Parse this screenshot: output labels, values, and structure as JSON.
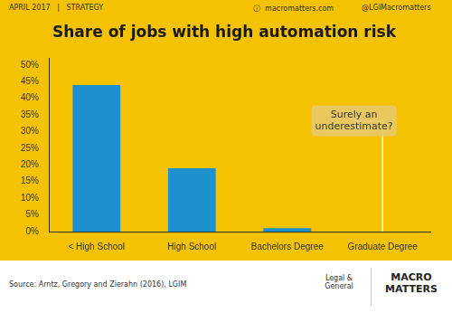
{
  "chart_data": {
    "type": "bar",
    "title": "Share of jobs with high automation risk",
    "categories": [
      "< High School",
      "High School",
      "Bachelors Degree",
      "Graduate Degree"
    ],
    "values": [
      44,
      19,
      1,
      0
    ],
    "color": "#1e90cd",
    "ylim": [
      0,
      52
    ],
    "yticks": [
      {
        "value": 0,
        "label": "0%"
      },
      {
        "value": 5,
        "label": "5%"
      },
      {
        "value": 10,
        "label": "10%"
      },
      {
        "value": 15,
        "label": "15%"
      },
      {
        "value": 20,
        "label": "20%"
      },
      {
        "value": 25,
        "label": "25%"
      },
      {
        "value": 30,
        "label": "30%"
      },
      {
        "value": 35,
        "label": "35%"
      },
      {
        "value": 40,
        "label": "40%"
      },
      {
        "value": 45,
        "label": "45%"
      },
      {
        "value": 50,
        "label": "50%"
      }
    ],
    "grid": false,
    "annotations": [
      {
        "text": "Surely an\nunderestimate?",
        "category": "Graduate Degree"
      }
    ],
    "header": [
      "APRIL 2017   |   STRATEGY",
      "ⓘ  macromatters.com",
      "@LGIMacromatters"
    ],
    "source": "Source: Arntz, Gregory and Zierahn (2016), LGIM",
    "organisation": "Legal &\nGeneral",
    "logo": "MACRO\nMATTERS"
  }
}
